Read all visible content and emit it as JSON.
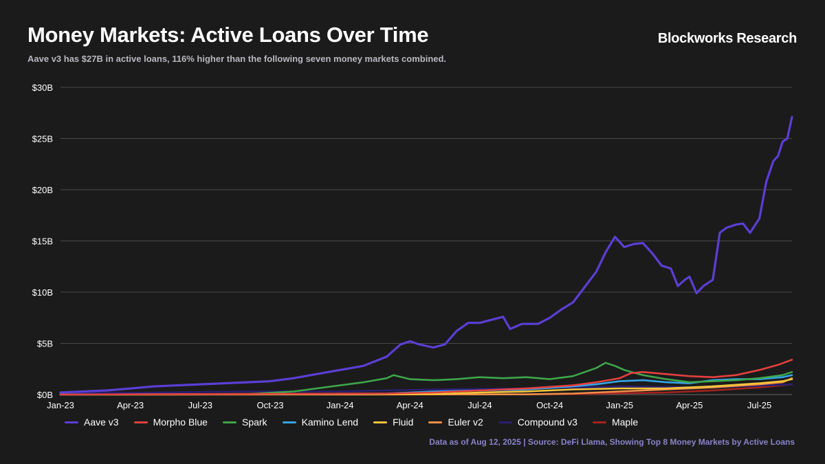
{
  "header": {
    "title": "Money Markets: Active Loans Over Time",
    "subtitle": "Aave v3 has $27B in active loans, 116% higher than the following seven money markets combined.",
    "brand": "Blockworks Research"
  },
  "footer": {
    "source": "Data as of Aug 12, 2025 | Source: DeFi Llama, Showing Top 8 Money Markets by Active Loans"
  },
  "chart_data": {
    "type": "line",
    "title": "Money Markets: Active Loans Over Time",
    "xlabel": "",
    "ylabel": "",
    "unit": "$B",
    "x_range": [
      0,
      31.4
    ],
    "x_unit": "months since Jan 2023",
    "ylim": [
      0,
      30
    ],
    "y_ticks": [
      0,
      5,
      10,
      15,
      20,
      25,
      30
    ],
    "y_tick_labels": [
      "$0B",
      "$5B",
      "$10B",
      "$15B",
      "$20B",
      "$25B",
      "$30B"
    ],
    "x_ticks": [
      0,
      3,
      6,
      9,
      12,
      15,
      18,
      21,
      24,
      27,
      30
    ],
    "x_tick_labels": [
      "Jan-23",
      "Apr-23",
      "Jul-23",
      "Oct-23",
      "Jan-24",
      "Apr-24",
      "Jul-24",
      "Oct-24",
      "Jan-25",
      "Apr-25",
      "Jul-25"
    ],
    "grid": true,
    "legend_position": "bottom",
    "series": [
      {
        "name": "Aave v3",
        "color": "#5b3fd6",
        "points": [
          [
            0,
            0.2
          ],
          [
            1,
            0.3
          ],
          [
            2,
            0.4
          ],
          [
            3,
            0.6
          ],
          [
            4,
            0.8
          ],
          [
            5,
            0.9
          ],
          [
            6,
            1.0
          ],
          [
            7,
            1.1
          ],
          [
            8,
            1.2
          ],
          [
            9,
            1.3
          ],
          [
            10,
            1.6
          ],
          [
            11,
            2.0
          ],
          [
            12,
            2.4
          ],
          [
            13,
            2.8
          ],
          [
            14,
            3.7
          ],
          [
            14.6,
            4.9
          ],
          [
            15,
            5.2
          ],
          [
            15.4,
            4.9
          ],
          [
            16,
            4.6
          ],
          [
            16.5,
            4.9
          ],
          [
            17,
            6.2
          ],
          [
            17.5,
            7.0
          ],
          [
            18,
            7.0
          ],
          [
            18.5,
            7.3
          ],
          [
            19,
            7.6
          ],
          [
            19.3,
            6.4
          ],
          [
            19.8,
            6.9
          ],
          [
            20.5,
            6.9
          ],
          [
            21,
            7.5
          ],
          [
            21.5,
            8.3
          ],
          [
            22,
            9.0
          ],
          [
            22.5,
            10.5
          ],
          [
            23,
            12.0
          ],
          [
            23.4,
            13.9
          ],
          [
            23.8,
            15.4
          ],
          [
            24.2,
            14.4
          ],
          [
            24.6,
            14.7
          ],
          [
            25.0,
            14.8
          ],
          [
            25.4,
            13.8
          ],
          [
            25.8,
            12.6
          ],
          [
            26.2,
            12.3
          ],
          [
            26.5,
            10.6
          ],
          [
            26.8,
            11.2
          ],
          [
            27.0,
            11.5
          ],
          [
            27.3,
            9.9
          ],
          [
            27.6,
            10.6
          ],
          [
            28.0,
            11.2
          ],
          [
            28.3,
            15.8
          ],
          [
            28.6,
            16.3
          ],
          [
            29.0,
            16.6
          ],
          [
            29.3,
            16.7
          ],
          [
            29.6,
            15.8
          ],
          [
            30.0,
            17.2
          ],
          [
            30.3,
            20.8
          ],
          [
            30.6,
            22.8
          ],
          [
            30.8,
            23.3
          ],
          [
            31.0,
            24.7
          ],
          [
            31.2,
            25.0
          ],
          [
            31.4,
            27.1
          ]
        ]
      },
      {
        "name": "Morpho Blue",
        "color": "#e5403e",
        "points": [
          [
            0,
            0
          ],
          [
            14,
            0.1
          ],
          [
            16,
            0.2
          ],
          [
            18,
            0.4
          ],
          [
            20,
            0.6
          ],
          [
            22,
            0.9
          ],
          [
            23,
            1.2
          ],
          [
            24,
            1.6
          ],
          [
            24.5,
            2.1
          ],
          [
            25,
            2.2
          ],
          [
            26,
            2.0
          ],
          [
            27,
            1.8
          ],
          [
            28,
            1.7
          ],
          [
            29,
            1.9
          ],
          [
            30,
            2.4
          ],
          [
            30.8,
            2.9
          ],
          [
            31.4,
            3.4
          ]
        ]
      },
      {
        "name": "Spark",
        "color": "#3ea64a",
        "points": [
          [
            0,
            0
          ],
          [
            8,
            0.05
          ],
          [
            10,
            0.3
          ],
          [
            12,
            0.9
          ],
          [
            13,
            1.2
          ],
          [
            14,
            1.6
          ],
          [
            14.3,
            1.9
          ],
          [
            15,
            1.5
          ],
          [
            16,
            1.4
          ],
          [
            17,
            1.5
          ],
          [
            18,
            1.7
          ],
          [
            19,
            1.6
          ],
          [
            20,
            1.7
          ],
          [
            21,
            1.5
          ],
          [
            22,
            1.8
          ],
          [
            23,
            2.6
          ],
          [
            23.4,
            3.1
          ],
          [
            23.8,
            2.8
          ],
          [
            24.2,
            2.4
          ],
          [
            25,
            1.9
          ],
          [
            26,
            1.5
          ],
          [
            27,
            1.2
          ],
          [
            28,
            1.3
          ],
          [
            29,
            1.4
          ],
          [
            30,
            1.6
          ],
          [
            31,
            1.9
          ],
          [
            31.4,
            2.2
          ]
        ]
      },
      {
        "name": "Kamino Lend",
        "color": "#35a4e8",
        "points": [
          [
            0,
            0
          ],
          [
            14,
            0.1
          ],
          [
            16,
            0.3
          ],
          [
            18,
            0.4
          ],
          [
            20,
            0.5
          ],
          [
            22,
            0.8
          ],
          [
            23,
            1.0
          ],
          [
            24,
            1.3
          ],
          [
            25,
            1.4
          ],
          [
            26,
            1.2
          ],
          [
            27,
            1.1
          ],
          [
            28,
            1.4
          ],
          [
            29,
            1.5
          ],
          [
            30,
            1.5
          ],
          [
            31,
            1.7
          ],
          [
            31.4,
            1.9
          ]
        ]
      },
      {
        "name": "Fluid",
        "color": "#f5c53a",
        "points": [
          [
            0,
            0
          ],
          [
            16,
            0.05
          ],
          [
            18,
            0.2
          ],
          [
            20,
            0.3
          ],
          [
            22,
            0.5
          ],
          [
            24,
            0.6
          ],
          [
            26,
            0.6
          ],
          [
            28,
            0.8
          ],
          [
            30,
            1.1
          ],
          [
            31,
            1.3
          ],
          [
            31.4,
            1.5
          ]
        ]
      },
      {
        "name": "Euler v2",
        "color": "#f0904a",
        "points": [
          [
            0,
            0
          ],
          [
            20,
            0.02
          ],
          [
            22,
            0.1
          ],
          [
            24,
            0.3
          ],
          [
            26,
            0.5
          ],
          [
            28,
            0.7
          ],
          [
            30,
            1.0
          ],
          [
            31,
            1.2
          ],
          [
            31.4,
            1.6
          ]
        ]
      },
      {
        "name": "Compound v3",
        "color": "#2a1f72",
        "points": [
          [
            0,
            0.1
          ],
          [
            4,
            0.2
          ],
          [
            8,
            0.3
          ],
          [
            12,
            0.3
          ],
          [
            16,
            0.5
          ],
          [
            20,
            0.6
          ],
          [
            24,
            0.8
          ],
          [
            28,
            0.7
          ],
          [
            31.4,
            1.0
          ]
        ]
      },
      {
        "name": "Maple",
        "color": "#a3231f",
        "points": [
          [
            0,
            0
          ],
          [
            18,
            0.02
          ],
          [
            22,
            0.05
          ],
          [
            26,
            0.2
          ],
          [
            28,
            0.4
          ],
          [
            30,
            0.7
          ],
          [
            31.4,
            1.0
          ]
        ]
      }
    ]
  }
}
